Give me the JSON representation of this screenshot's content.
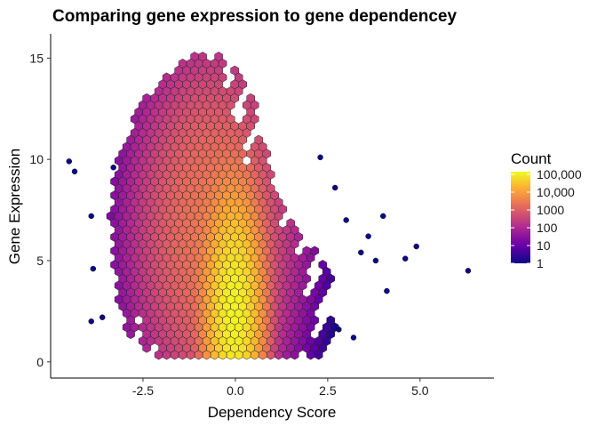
{
  "chart_data": {
    "type": "hexbin",
    "title": "Comparing gene expression to gene dependencey",
    "xlabel": "Dependency Score",
    "ylabel": "Gene Expression",
    "xlim": [
      -5.0,
      7.0
    ],
    "ylim": [
      -0.8,
      16.2
    ],
    "x_ticks": [
      -2.5,
      0.0,
      2.5,
      5.0
    ],
    "x_tick_labels": [
      "-2.5",
      "0.0",
      "2.5",
      "5.0"
    ],
    "y_ticks": [
      0,
      5,
      10,
      15
    ],
    "y_tick_labels": [
      "0",
      "5",
      "10",
      "15"
    ],
    "grid": false,
    "legend": {
      "title": "Count",
      "position": "right",
      "scale": "log10",
      "breaks": [
        100000,
        10000,
        1000,
        100,
        10,
        1
      ],
      "labels": [
        "100,000",
        "10,000",
        "1000",
        "100",
        "10",
        "1"
      ],
      "colors": [
        "#0d0887",
        "#6a00a8",
        "#b12a90",
        "#e16462",
        "#fca636",
        "#f0f921"
      ]
    },
    "density_components": [
      {
        "x_center": -0.05,
        "y_center": 2.5,
        "x_spread": 0.32,
        "y_spread": 2.4,
        "peak_count": 120000
      },
      {
        "x_center": -0.6,
        "y_center": 6.5,
        "x_spread": 0.9,
        "y_spread": 3.8,
        "peak_count": 2500
      }
    ],
    "outliers": [
      {
        "x": -4.5,
        "y": 9.9
      },
      {
        "x": -4.35,
        "y": 9.4
      },
      {
        "x": -3.9,
        "y": 7.2
      },
      {
        "x": -3.85,
        "y": 4.6
      },
      {
        "x": -3.9,
        "y": 2.0
      },
      {
        "x": -3.6,
        "y": 2.2
      },
      {
        "x": 2.7,
        "y": 8.6
      },
      {
        "x": 3.0,
        "y": 7.0
      },
      {
        "x": 3.4,
        "y": 5.4
      },
      {
        "x": 3.6,
        "y": 6.2
      },
      {
        "x": 3.8,
        "y": 5.0
      },
      {
        "x": 4.0,
        "y": 7.2
      },
      {
        "x": 4.1,
        "y": 3.5
      },
      {
        "x": 4.6,
        "y": 5.1
      },
      {
        "x": 4.9,
        "y": 5.7
      },
      {
        "x": 6.3,
        "y": 4.5
      },
      {
        "x": 2.8,
        "y": 1.6
      },
      {
        "x": 3.2,
        "y": 1.2
      },
      {
        "x": -3.3,
        "y": 9.6
      },
      {
        "x": 2.3,
        "y": 10.1
      }
    ]
  }
}
